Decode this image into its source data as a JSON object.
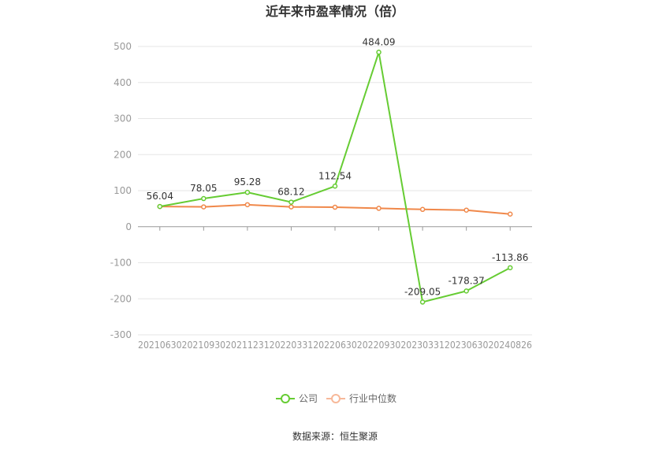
{
  "chart_data": {
    "type": "line",
    "title": "近年来市盈率情况（倍）",
    "categories": [
      "20210630",
      "20210930",
      "20211231",
      "20220331",
      "20220630",
      "20220930",
      "20230331",
      "20230630",
      "20240826"
    ],
    "series": [
      {
        "name": "公司",
        "color": "#66cc33",
        "values": [
          56.04,
          78.05,
          95.28,
          68.12,
          112.54,
          484.09,
          -209.05,
          -178.37,
          -113.86
        ],
        "labels": [
          "56.04",
          "78.05",
          "95.28",
          "68.12",
          "112.54",
          "484.09",
          "-209.05",
          "-178.37",
          "-113.86"
        ]
      },
      {
        "name": "行业中位数",
        "color": "#f0884a",
        "values": [
          56,
          55,
          61,
          55,
          54,
          51,
          48,
          46,
          35
        ]
      }
    ],
    "ylim": [
      -300,
      500
    ],
    "yticks": [
      500,
      400,
      300,
      200,
      100,
      0,
      -100,
      -200,
      -300
    ],
    "ytick_labels": [
      "500",
      "400",
      "300",
      "200",
      "100",
      "0",
      "-100",
      "-200",
      "-300"
    ],
    "grid": true,
    "legend_position": "bottom"
  },
  "source": "数据来源：恒生聚源"
}
